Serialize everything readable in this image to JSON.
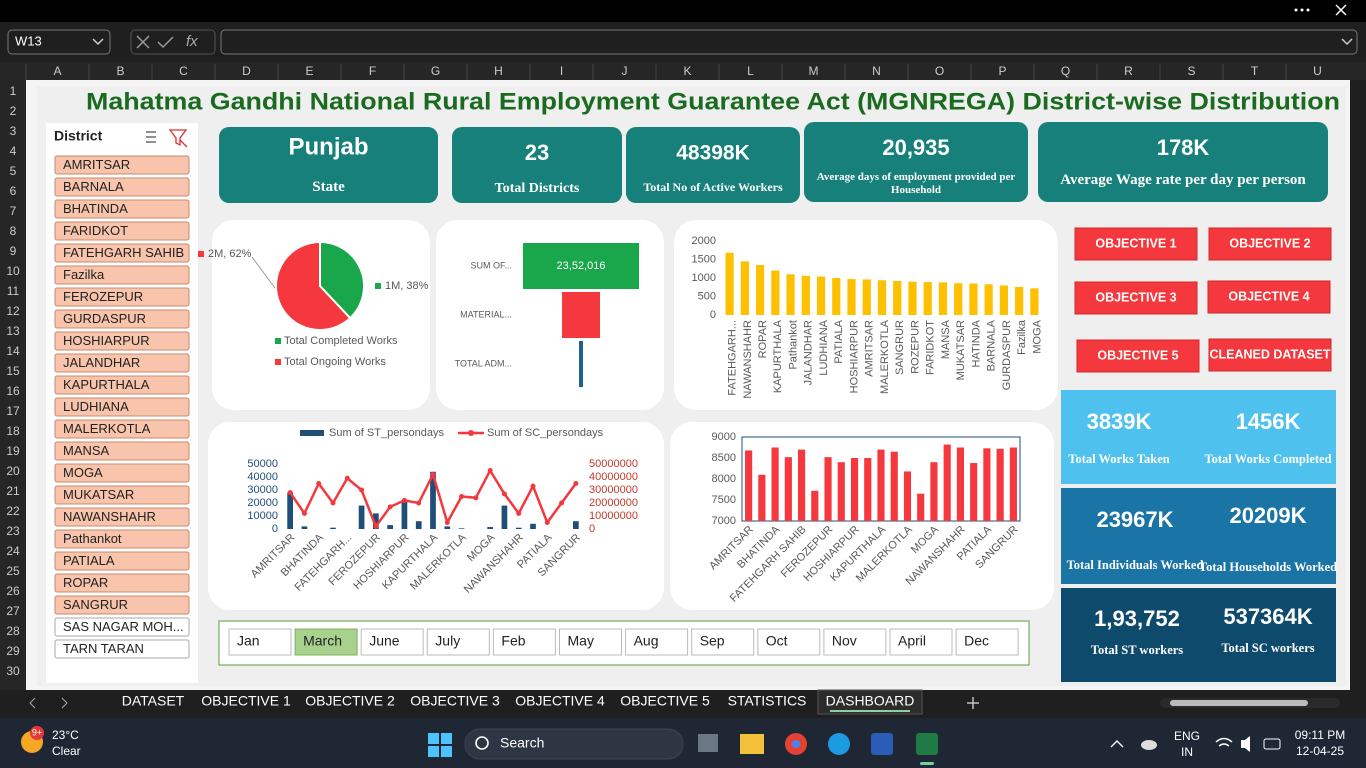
{
  "app": {
    "name_box": "W13",
    "function_label": "fx",
    "columns": [
      "A",
      "B",
      "C",
      "D",
      "E",
      "F",
      "G",
      "H",
      "I",
      "J",
      "K",
      "L",
      "M",
      "N",
      "O",
      "P",
      "Q",
      "R",
      "S",
      "T",
      "U"
    ],
    "rows": [
      1,
      2,
      3,
      4,
      5,
      6,
      7,
      8,
      9,
      10,
      11,
      12,
      13,
      14,
      15,
      16,
      17,
      18,
      19,
      20,
      21,
      22,
      23,
      24,
      25,
      26,
      27,
      28,
      29,
      30
    ],
    "sheets": [
      "DATASET",
      "OBJECTIVE 1",
      "OBJECTIVE 2",
      "OBJECTIVE 3",
      "OBJECTIVE 4",
      "OBJECTIVE 5",
      "STATISTICS",
      "DASHBOARD"
    ],
    "active_sheet": 7
  },
  "taskbar": {
    "badge": "9+",
    "weather_temp": "23°C",
    "weather_text": "Clear",
    "search": "Search",
    "lang": "ENG",
    "region": "IN",
    "time": "09:11 PM",
    "date": "12-04-25"
  },
  "dashboard": {
    "title": "Mahatma Gandhi National Rural Employment Guarantee Act (MGNREGA) District-wise Distribution",
    "slicer": {
      "title": "District",
      "items": [
        {
          "label": "AMRITSAR",
          "selected": true
        },
        {
          "label": "BARNALA",
          "selected": true
        },
        {
          "label": "BHATINDA",
          "selected": true
        },
        {
          "label": "FARIDKOT",
          "selected": true
        },
        {
          "label": "FATEHGARH SAHIB",
          "selected": true
        },
        {
          "label": "Fazilka",
          "selected": true
        },
        {
          "label": "FEROZEPUR",
          "selected": true
        },
        {
          "label": "GURDASPUR",
          "selected": true
        },
        {
          "label": "HOSHIARPUR",
          "selected": true
        },
        {
          "label": "JALANDHAR",
          "selected": true
        },
        {
          "label": "KAPURTHALA",
          "selected": true
        },
        {
          "label": "LUDHIANA",
          "selected": true
        },
        {
          "label": "MALERKOTLA",
          "selected": true
        },
        {
          "label": "MANSA",
          "selected": true
        },
        {
          "label": "MOGA",
          "selected": true
        },
        {
          "label": "MUKATSAR",
          "selected": true
        },
        {
          "label": "NAWANSHAHR",
          "selected": true
        },
        {
          "label": "Pathankot",
          "selected": true
        },
        {
          "label": "PATIALA",
          "selected": true
        },
        {
          "label": "ROPAR",
          "selected": true
        },
        {
          "label": "SANGRUR",
          "selected": true
        },
        {
          "label": "SAS NAGAR MOH...",
          "selected": false
        },
        {
          "label": "TARN TARAN",
          "selected": false
        }
      ]
    },
    "kpis": [
      {
        "value": "Punjab",
        "label": "State"
      },
      {
        "value": "23",
        "label": "Total Districts"
      },
      {
        "value": "48398K",
        "label": "Total No of Active Workers"
      },
      {
        "value": "20,935",
        "label": "Average days of employment provided per Household"
      },
      {
        "value": "178K",
        "label": "Average Wage rate per day per person"
      }
    ],
    "objectives": [
      "OBJECTIVE 1",
      "OBJECTIVE  2",
      "OBJECTIVE 3",
      "OBJECTIVE 4",
      "OBJECTIVE 5",
      "CLEANED DATASET"
    ],
    "stats": [
      {
        "value": "3839K",
        "label": "Total Works Taken"
      },
      {
        "value": "1456K",
        "label": "Total Works Completed"
      },
      {
        "value": "23967K",
        "label": "Total Individuals Worked"
      },
      {
        "value": "20209K",
        "label": "Total Households Worked"
      },
      {
        "value": "1,93,752",
        "label": "Total ST workers"
      },
      {
        "value": "537364K",
        "label": "Total SC workers"
      }
    ],
    "months": {
      "items": [
        "Jan",
        "March",
        "June",
        "July",
        "Feb",
        "May",
        "Aug",
        "Sep",
        "Oct",
        "Nov",
        "April",
        "Dec"
      ],
      "selected": 1
    }
  },
  "chart_data": [
    {
      "type": "pie",
      "categories": [
        "Total Completed Works",
        "Total Ongoing Works"
      ],
      "values": [
        38,
        62
      ],
      "value_labels": [
        "1M, 38%",
        "2M, 62%"
      ],
      "colors": [
        "#1aa64a",
        "#f4383d"
      ],
      "legend": "bottom"
    },
    {
      "type": "funnel",
      "categories": [
        "SUM OF...",
        "MATERIAL...",
        "TOTAL ADM..."
      ],
      "values": [
        2352016,
        770000,
        80000
      ],
      "value_labels": [
        "23,52,016",
        null,
        null
      ],
      "colors": [
        "#1aa64a",
        "#f4383d",
        "#1f5f8b"
      ]
    },
    {
      "type": "bar",
      "categories": [
        "FATEHGARH...",
        "NAWANSHAHR",
        "ROPAR",
        "KAPURTHALA",
        "Pathankot",
        "JALANDHAR",
        "LUDHIANA",
        "PATIALA",
        "HOSHIARPUR",
        "AMRITSAR",
        "MALERKOTLA",
        "SANGRUR",
        "ROZEPUR",
        "FARIDKOT",
        "MANSA",
        "MUKATSAR",
        "HATINDA",
        "BARNALA",
        "GURDASPUR",
        "Fazilka",
        "MOGA"
      ],
      "values": [
        1680,
        1450,
        1350,
        1200,
        1100,
        1060,
        1040,
        1000,
        970,
        960,
        940,
        920,
        900,
        890,
        880,
        860,
        850,
        830,
        800,
        760,
        720
      ],
      "color": "#ffc000",
      "ylim": [
        0,
        2000
      ],
      "yticks": [
        0,
        500,
        1000,
        1500,
        2000
      ]
    },
    {
      "type": "combo",
      "categories": [
        "AMRITSAR",
        null,
        "BHATINDA",
        null,
        "FATEHGARH...",
        null,
        "FEROZEPUR",
        null,
        "HOSHIARPUR",
        null,
        "KAPURTHALA",
        null,
        "MALERKOTLA",
        null,
        "MOGA",
        null,
        "NAWANSHAHR",
        null,
        "PATIALA",
        null,
        "SANGRUR"
      ],
      "series": [
        {
          "name": "Sum of ST_persondays",
          "color": "#1f4e79",
          "values": [
            28000,
            2000,
            0,
            1000,
            0,
            18000,
            12000,
            3000,
            22000,
            6000,
            44000,
            2000,
            500,
            0,
            1500,
            18000,
            1000,
            4000,
            0,
            0,
            6000
          ]
        },
        {
          "name": "Sum of SC_persondays",
          "color": "#f4383d",
          "axis": "y2",
          "values": [
            28000000,
            12000000,
            35000000,
            20000000,
            39000000,
            30000000,
            2000000,
            17000000,
            22000000,
            20000000,
            42000000,
            5000000,
            25000000,
            24000000,
            45000000,
            27000000,
            12000000,
            33000000,
            5000000,
            20000000,
            35000000
          ]
        }
      ],
      "ylim": [
        0,
        50000
      ],
      "yticks": [
        0,
        10000,
        20000,
        30000,
        40000,
        50000
      ],
      "y2lim": [
        0,
        50000000
      ],
      "y2ticks": [
        0,
        10000000,
        20000000,
        30000000,
        40000000,
        50000000
      ],
      "legend": "top"
    },
    {
      "type": "bar",
      "categories": [
        "AMRITSAR",
        null,
        "BHATINDA",
        null,
        "FATEHGARH SAHIB",
        null,
        "FEROZEPUR",
        null,
        "HOSHIARPUR",
        null,
        "KAPURTHALA",
        null,
        "MALERKOTLA",
        null,
        "MOGA",
        null,
        "NAWANSHAHR",
        null,
        "PATIALA",
        null,
        "SANGRUR"
      ],
      "values": [
        8680,
        8100,
        8750,
        8520,
        8700,
        7720,
        8520,
        8400,
        8500,
        8500,
        8700,
        8650,
        8180,
        7650,
        8400,
        8820,
        8750,
        8380,
        8730,
        8720,
        8750
      ],
      "color": "#f4383d",
      "ylim": [
        7000,
        9000
      ],
      "yticks": [
        7000,
        7500,
        8000,
        8500,
        9000
      ]
    }
  ]
}
